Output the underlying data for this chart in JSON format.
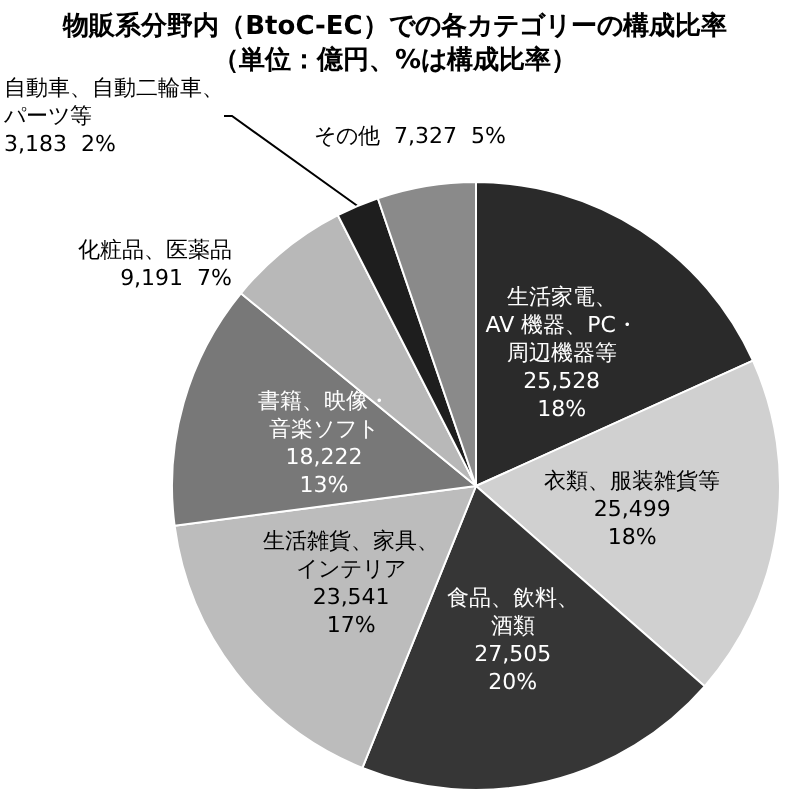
{
  "chart_data": {
    "type": "pie",
    "title": "物販系分野内（BtoC-EC）での各カテゴリーの構成比率",
    "subtitle": "（単位：億円、%は構成比率）",
    "categories": [
      "生活家電、AV 機器、PC・周辺機器等",
      "衣類、服装雑貨等",
      "食品、飲料、酒類",
      "生活雑貨、家具、インテリア",
      "書籍、映像・音楽ソフト",
      "化粧品、医薬品",
      "自動車、自動二輪車、パーツ等",
      "その他"
    ],
    "values": [
      25528,
      25499,
      27505,
      23541,
      18222,
      9191,
      3183,
      7327
    ],
    "value_labels": [
      "25,528\n18%",
      "25,499\n18%",
      "27,505\n20%",
      "23,541\n17%",
      "18,222\n13%",
      "9,191  7%",
      "3,183  2%",
      "7,327  5%"
    ],
    "colors": [
      "#2a2a2a",
      "#d0d0d0",
      "#363636",
      "#bcbcbc",
      "#787878",
      "#b8b8b8",
      "#1e1e1e",
      "#8a8a8a"
    ],
    "legend": false
  }
}
